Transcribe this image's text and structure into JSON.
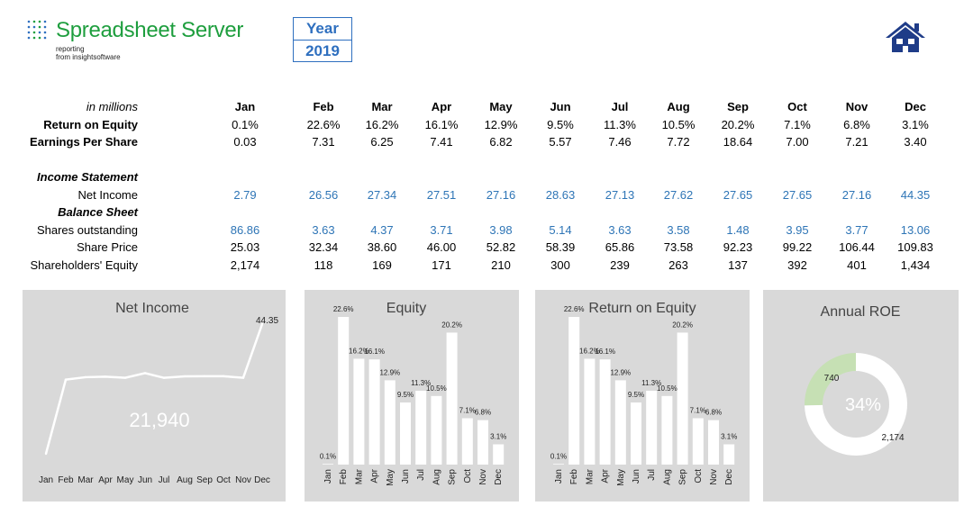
{
  "header": {
    "app_name": "Spreadsheet Server",
    "sub_line1": "reporting",
    "sub_line2": "from insightsoftware",
    "year_label": "Year",
    "year_value": "2019"
  },
  "table": {
    "unit_label": "in millions",
    "months": [
      "Jan",
      "Feb",
      "Mar",
      "Apr",
      "May",
      "Jun",
      "Jul",
      "Aug",
      "Sep",
      "Oct",
      "Nov",
      "Dec"
    ],
    "rows": {
      "roe": {
        "label": "Return on Equity",
        "values": [
          "0.1%",
          "22.6%",
          "16.2%",
          "16.1%",
          "12.9%",
          "9.5%",
          "11.3%",
          "10.5%",
          "20.2%",
          "7.1%",
          "6.8%",
          "3.1%"
        ]
      },
      "eps": {
        "label": "Earnings Per Share",
        "values": [
          "0.03",
          "7.31",
          "6.25",
          "7.41",
          "6.82",
          "5.57",
          "7.46",
          "7.72",
          "18.64",
          "7.00",
          "7.21",
          "3.40"
        ]
      },
      "income_header": {
        "label": "Income Statement"
      },
      "net_income": {
        "label": "Net Income",
        "values": [
          "2.79",
          "26.56",
          "27.34",
          "27.51",
          "27.16",
          "28.63",
          "27.13",
          "27.62",
          "27.65",
          "27.65",
          "27.16",
          "44.35"
        ]
      },
      "balance_header": {
        "label": "Balance Sheet"
      },
      "shares": {
        "label": "Shares outstanding",
        "values": [
          "86.86",
          "3.63",
          "4.37",
          "3.71",
          "3.98",
          "5.14",
          "3.63",
          "3.58",
          "1.48",
          "3.95",
          "3.77",
          "13.06"
        ]
      },
      "price": {
        "label": "Share Price",
        "values": [
          "25.03",
          "32.34",
          "38.60",
          "46.00",
          "52.82",
          "58.39",
          "65.86",
          "73.58",
          "92.23",
          "99.22",
          "106.44",
          "109.83"
        ]
      },
      "equity": {
        "label": "Shareholders' Equity",
        "values": [
          "2,174",
          "118",
          "169",
          "171",
          "210",
          "300",
          "239",
          "263",
          "137",
          "392",
          "401",
          "1,434"
        ]
      }
    }
  },
  "chart_data": [
    {
      "type": "line",
      "title": "Net Income",
      "categories": [
        "Jan",
        "Feb",
        "Mar",
        "Apr",
        "May",
        "Jun",
        "Jul",
        "Aug",
        "Sep",
        "Oct",
        "Nov",
        "Dec"
      ],
      "values": [
        2.79,
        26.56,
        27.34,
        27.51,
        27.16,
        28.63,
        27.13,
        27.62,
        27.65,
        27.65,
        27.16,
        44.35
      ],
      "last_label": "44.35",
      "center_text": "21,940",
      "line_color": "#ffffff"
    },
    {
      "type": "bar",
      "title": "Equity",
      "categories": [
        "Jan",
        "Feb",
        "Mar",
        "Apr",
        "May",
        "Jun",
        "Jul",
        "Aug",
        "Sep",
        "Oct",
        "Nov",
        "Dec"
      ],
      "values": [
        0.1,
        22.6,
        16.2,
        16.1,
        12.9,
        9.5,
        11.3,
        10.5,
        20.2,
        7.1,
        6.8,
        3.1
      ],
      "data_labels": [
        "0.1%",
        "22.6%",
        "16.2%",
        "16.1%",
        "12.9%",
        "9.5%",
        "11.3%",
        "10.5%",
        "20.2%",
        "7.1%",
        "6.8%",
        "3.1%"
      ],
      "bar_color": "#ffffff"
    },
    {
      "type": "bar",
      "title": "Return on Equity",
      "categories": [
        "Jan",
        "Feb",
        "Mar",
        "Apr",
        "May",
        "Jun",
        "Jul",
        "Aug",
        "Sep",
        "Oct",
        "Nov",
        "Dec"
      ],
      "values": [
        0.1,
        22.6,
        16.2,
        16.1,
        12.9,
        9.5,
        11.3,
        10.5,
        20.2,
        7.1,
        6.8,
        3.1
      ],
      "data_labels": [
        "0.1%",
        "22.6%",
        "16.2%",
        "16.1%",
        "12.9%",
        "9.5%",
        "11.3%",
        "10.5%",
        "20.2%",
        "7.1%",
        "6.8%",
        "3.1%"
      ],
      "bar_color": "#ffffff"
    },
    {
      "type": "pie",
      "title": "Annual ROE",
      "slices": [
        {
          "label": "740",
          "value": 740,
          "color": "#c6e0b4"
        },
        {
          "label": "2,174",
          "value": 2174,
          "color": "#ffffff"
        }
      ],
      "center_text": "34%"
    }
  ],
  "colors": {
    "brand_green": "#1e9e3e",
    "accent_blue": "#2e6fbf",
    "value_blue": "#2e75b6",
    "home_icon": "#1f3c88",
    "panel_bg": "#d9d9d9"
  },
  "icons": {
    "logo": "dot-grid-logo-icon",
    "home": "home-icon"
  }
}
